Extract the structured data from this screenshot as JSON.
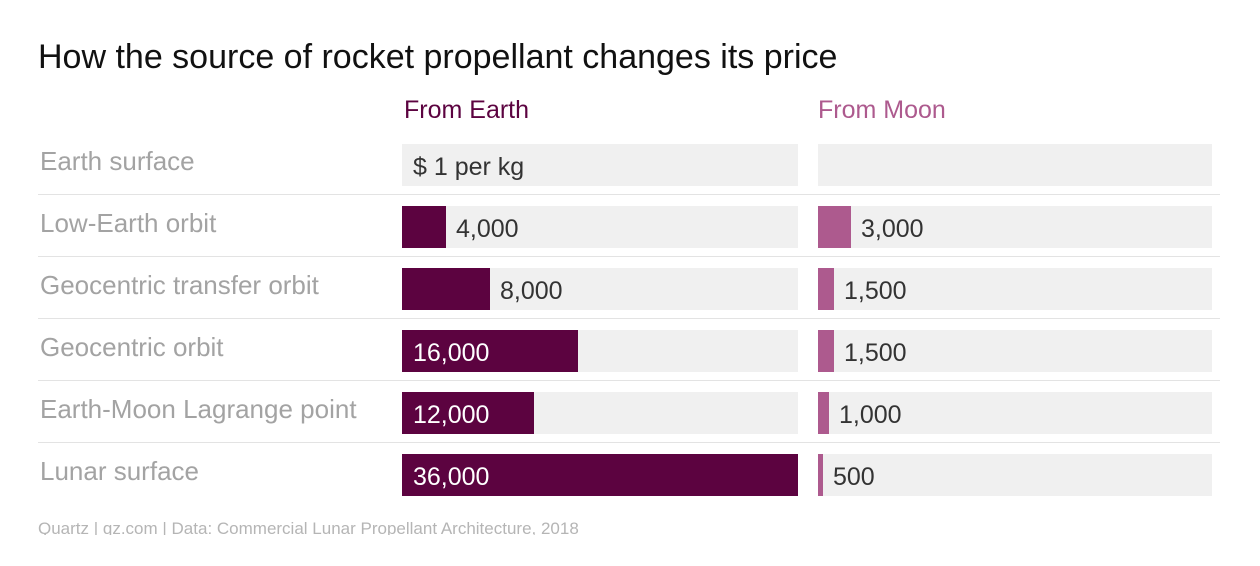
{
  "chart_data": {
    "type": "bar",
    "orientation": "horizontal",
    "title": "How the source of rocket propellant changes its price",
    "unit_label": "$ 1 per kg",
    "categories": [
      "Earth surface",
      "Low-Earth orbit",
      "Geocentric transfer orbit",
      "Geocentric orbit",
      "Earth-Moon Lagrange point",
      "Lunar surface"
    ],
    "series": [
      {
        "name": "From Earth",
        "color": "#5c0340",
        "values": [
          1,
          4000,
          8000,
          16000,
          12000,
          36000
        ],
        "labels": [
          "$ 1 per kg",
          "4,000",
          "8,000",
          "16,000",
          "12,000",
          "36,000"
        ]
      },
      {
        "name": "From Moon",
        "color": "#ad5a8e",
        "values": [
          null,
          3000,
          1500,
          1500,
          1000,
          500
        ],
        "labels": [
          "",
          "3,000",
          "1,500",
          "1,500",
          "1,000",
          "500"
        ]
      }
    ],
    "xlim": [
      0,
      36000
    ],
    "grid": false,
    "legend": "top"
  },
  "source": "Quartz | qz.com | Data: Commercial Lunar Propellant Architecture, 2018"
}
